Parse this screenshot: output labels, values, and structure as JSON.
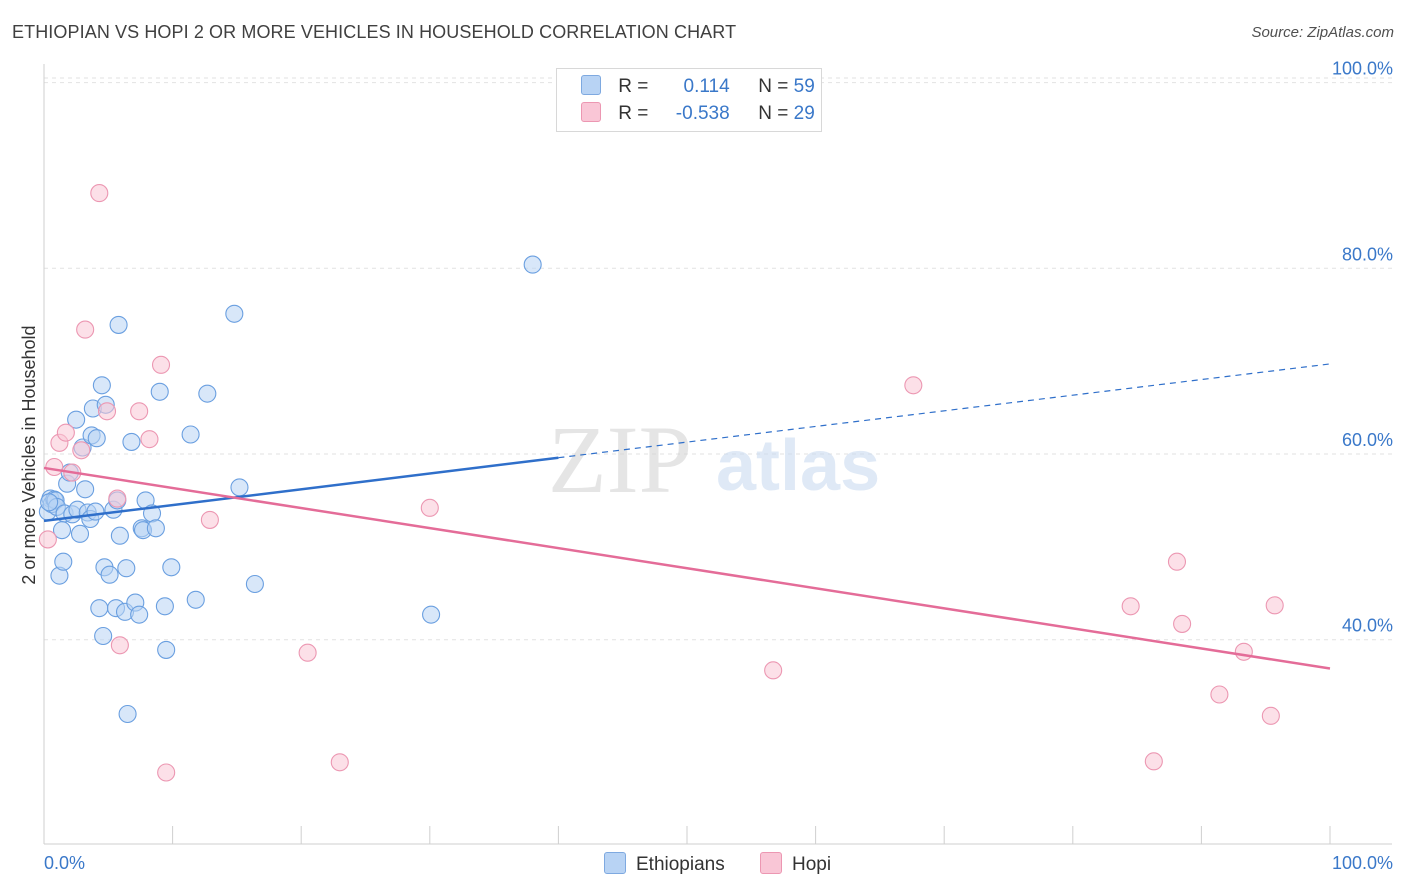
{
  "header": {
    "title": "ETHIOPIAN VS HOPI 2 OR MORE VEHICLES IN HOUSEHOLD CORRELATION CHART",
    "source": "Source: ZipAtlas.com"
  },
  "watermark": {
    "zip": "ZIP",
    "atlas": "atlas"
  },
  "legend": {
    "rows": [
      {
        "r_label": "R =",
        "r_value": "0.114",
        "n_label": "N =",
        "n_value": "59",
        "color": "#b8d3f4",
        "border": "#7ea9e0"
      },
      {
        "r_label": "R =",
        "r_value": "-0.538",
        "n_label": "N =",
        "n_value": "29",
        "color": "#f9c6d6",
        "border": "#ec97b2"
      }
    ]
  },
  "bottom_legend": {
    "items": [
      {
        "label": "Ethiopians"
      },
      {
        "label": "Hopi"
      }
    ]
  },
  "chart_data": {
    "type": "scatter",
    "title": "ETHIOPIAN VS HOPI 2 OR MORE VEHICLES IN HOUSEHOLD CORRELATION CHART",
    "xlabel": "",
    "ylabel": "2 or more Vehicles in Household",
    "xlim": [
      0,
      100
    ],
    "ylim": [
      18,
      102
    ],
    "x_tick_labels": [
      "0.0%",
      "100.0%"
    ],
    "y_ticks": [
      40,
      60,
      80,
      100
    ],
    "y_tick_labels": [
      "40.0%",
      "60.0%",
      "80.0%",
      "100.0%"
    ],
    "grid": true,
    "series": [
      {
        "name": "Ethiopians",
        "color": "#6a9fe0",
        "fill": "#b8d3f4",
        "trend": {
          "x": [
            0,
            40
          ],
          "y": [
            52.8,
            59.6
          ],
          "dashed_to": [
            100,
            69.7
          ],
          "color": "#2f6fca"
        },
        "points": [
          [
            0.3,
            53.8
          ],
          [
            0.5,
            55.2
          ],
          [
            0.6,
            54.6
          ],
          [
            0.8,
            55.1
          ],
          [
            0.9,
            55.0
          ],
          [
            1.0,
            54.3
          ],
          [
            1.2,
            46.9
          ],
          [
            1.4,
            51.8
          ],
          [
            1.5,
            48.4
          ],
          [
            1.6,
            53.6
          ],
          [
            1.8,
            56.8
          ],
          [
            2.0,
            58.0
          ],
          [
            2.2,
            53.5
          ],
          [
            2.5,
            63.7
          ],
          [
            2.6,
            54.0
          ],
          [
            2.8,
            51.4
          ],
          [
            3.0,
            60.7
          ],
          [
            3.2,
            56.2
          ],
          [
            3.4,
            53.7
          ],
          [
            3.6,
            53.0
          ],
          [
            3.7,
            62.0
          ],
          [
            3.8,
            64.9
          ],
          [
            4.0,
            53.8
          ],
          [
            4.1,
            61.7
          ],
          [
            4.3,
            43.4
          ],
          [
            4.5,
            67.4
          ],
          [
            4.6,
            40.4
          ],
          [
            4.7,
            47.8
          ],
          [
            4.8,
            65.3
          ],
          [
            5.1,
            47.0
          ],
          [
            5.4,
            54.0
          ],
          [
            5.6,
            43.4
          ],
          [
            5.7,
            55.0
          ],
          [
            5.8,
            73.9
          ],
          [
            5.9,
            51.2
          ],
          [
            6.3,
            43.0
          ],
          [
            6.4,
            47.7
          ],
          [
            6.5,
            32.0
          ],
          [
            6.8,
            61.3
          ],
          [
            7.1,
            44.0
          ],
          [
            7.4,
            42.7
          ],
          [
            7.6,
            52.0
          ],
          [
            7.7,
            51.8
          ],
          [
            7.9,
            55.0
          ],
          [
            8.4,
            53.6
          ],
          [
            8.7,
            52.0
          ],
          [
            9.0,
            66.7
          ],
          [
            9.4,
            43.6
          ],
          [
            9.5,
            38.9
          ],
          [
            9.9,
            47.8
          ],
          [
            11.4,
            62.1
          ],
          [
            11.8,
            44.3
          ],
          [
            12.7,
            66.5
          ],
          [
            14.8,
            75.1
          ],
          [
            15.2,
            56.4
          ],
          [
            16.4,
            46.0
          ],
          [
            30.1,
            42.7
          ],
          [
            38.0,
            80.4
          ],
          [
            0.4,
            54.8
          ]
        ]
      },
      {
        "name": "Hopi",
        "color": "#ec97b2",
        "fill": "#f9c6d6",
        "trend": {
          "x": [
            0,
            100
          ],
          "y": [
            58.5,
            36.9
          ],
          "color": "#e46c98"
        },
        "points": [
          [
            0.3,
            50.8
          ],
          [
            0.8,
            58.6
          ],
          [
            1.2,
            61.2
          ],
          [
            1.7,
            62.3
          ],
          [
            2.2,
            58.0
          ],
          [
            2.9,
            60.4
          ],
          [
            3.2,
            73.4
          ],
          [
            4.3,
            88.1
          ],
          [
            4.9,
            64.6
          ],
          [
            5.7,
            55.2
          ],
          [
            5.9,
            39.4
          ],
          [
            7.4,
            64.6
          ],
          [
            8.2,
            61.6
          ],
          [
            9.1,
            69.6
          ],
          [
            9.5,
            25.7
          ],
          [
            12.9,
            52.9
          ],
          [
            20.5,
            38.6
          ],
          [
            23.0,
            26.8
          ],
          [
            30.0,
            54.2
          ],
          [
            56.7,
            36.7
          ],
          [
            67.6,
            67.4
          ],
          [
            84.5,
            43.6
          ],
          [
            86.3,
            26.9
          ],
          [
            88.1,
            48.4
          ],
          [
            88.5,
            41.7
          ],
          [
            91.4,
            34.1
          ],
          [
            93.3,
            38.7
          ],
          [
            95.4,
            31.8
          ],
          [
            95.7,
            43.7
          ]
        ]
      }
    ]
  }
}
